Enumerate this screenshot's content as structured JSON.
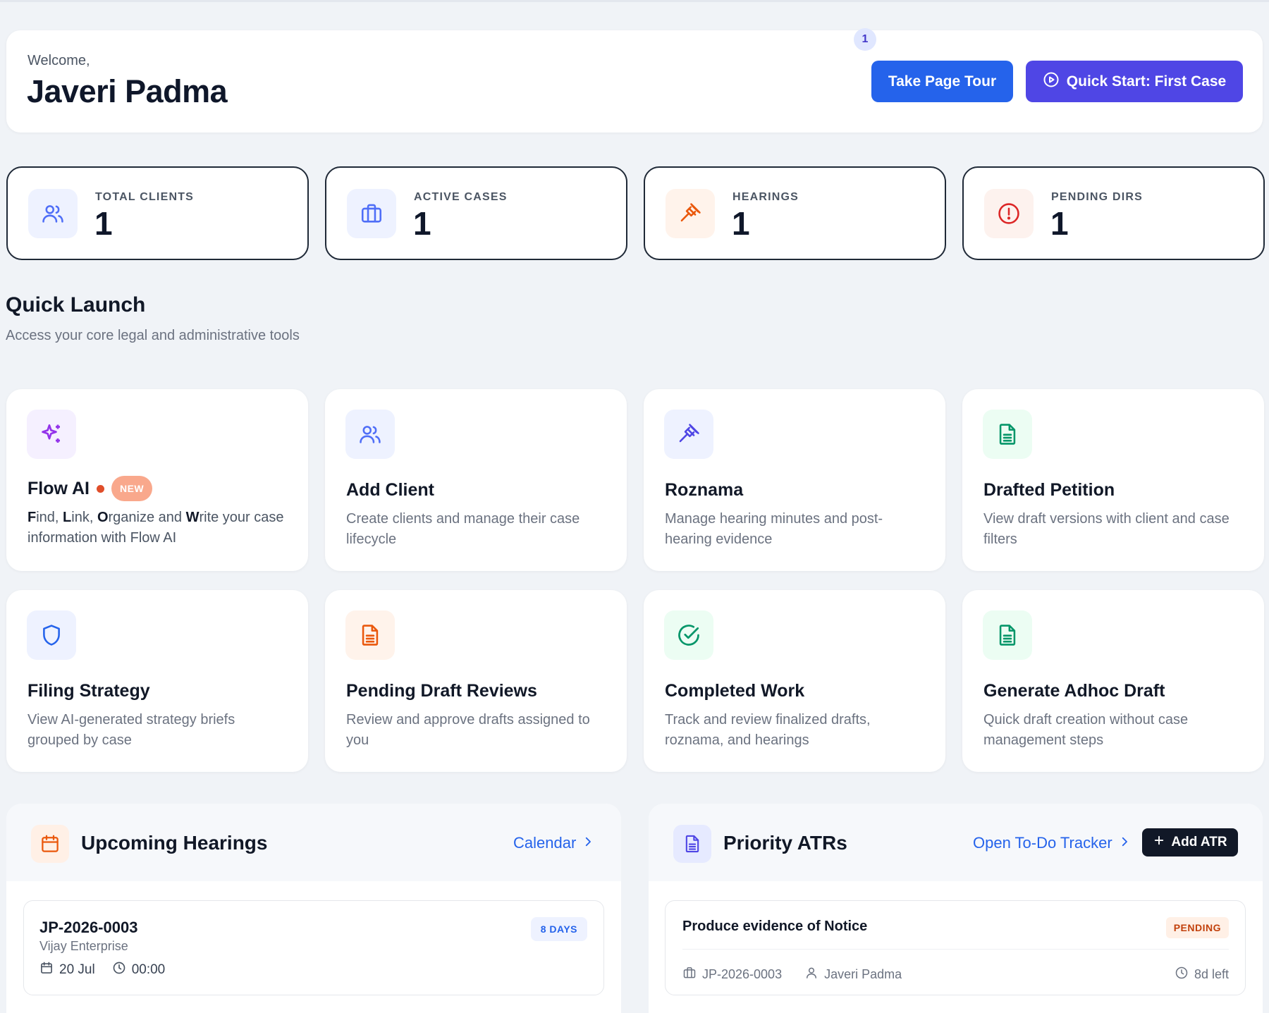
{
  "header": {
    "welcome_label": "Welcome,",
    "user_name": "Javeri Padma",
    "tour_button": "Take Page Tour",
    "quick_start_button": "Quick Start: First Case"
  },
  "stats": [
    {
      "label": "TOTAL CLIENTS",
      "value": "1",
      "icon": "users-icon",
      "color": "#4f6ef7"
    },
    {
      "label": "ACTIVE CASES",
      "value": "1",
      "icon": "briefcase-icon",
      "color": "#4f6ef7"
    },
    {
      "label": "HEARINGS",
      "value": "1",
      "icon": "gavel-icon",
      "color": "#ea580c"
    },
    {
      "label": "PENDING DIRS",
      "value": "1",
      "icon": "alert-circle-icon",
      "color": "#dc2626"
    }
  ],
  "quick_launch": {
    "title": "Quick Launch",
    "subtitle": "Access your core legal and administrative tools",
    "flow_ai": {
      "title": "Flow AI",
      "badge": "NEW",
      "desc_parts": [
        "F",
        "ind, ",
        "L",
        "ink, ",
        "O",
        "rganize and ",
        "W",
        "rite your case information with Flow AI"
      ]
    },
    "cards": [
      {
        "title": "Add Client",
        "desc": "Create clients and manage their case lifecycle",
        "icon": "users-icon"
      },
      {
        "title": "Roznama",
        "desc": "Manage hearing minutes and post-hearing evidence",
        "icon": "gavel-icon"
      },
      {
        "title": "Drafted Petition",
        "desc": "View draft versions with client and case filters",
        "icon": "document-icon"
      },
      {
        "title": "Filing Strategy",
        "desc": "View AI-generated strategy briefs grouped by case",
        "icon": "shield-icon"
      },
      {
        "title": "Pending Draft Reviews",
        "desc": "Review and approve drafts assigned to you",
        "icon": "document-icon"
      },
      {
        "title": "Completed Work",
        "desc": "Track and review finalized drafts, roznama, and hearings",
        "icon": "check-circle-icon"
      },
      {
        "title": "Generate Adhoc Draft",
        "desc": "Quick draft creation without case management steps",
        "icon": "document-icon"
      }
    ]
  },
  "hearings_panel": {
    "title": "Upcoming Hearings",
    "link": "Calendar",
    "item": {
      "case_id": "JP-2026-0003",
      "client": "Vijay Enterprise",
      "badge": "8 DAYS",
      "date": "20 Jul",
      "time": "00:00"
    }
  },
  "atr_panel": {
    "title": "Priority ATRs",
    "count": "1",
    "link": "Open To-Do Tracker",
    "add_button": "Add ATR",
    "item": {
      "title": "Produce evidence of Notice",
      "status": "PENDING",
      "case_id": "JP-2026-0003",
      "assignee": "Javeri Padma",
      "due": "8d left"
    }
  }
}
